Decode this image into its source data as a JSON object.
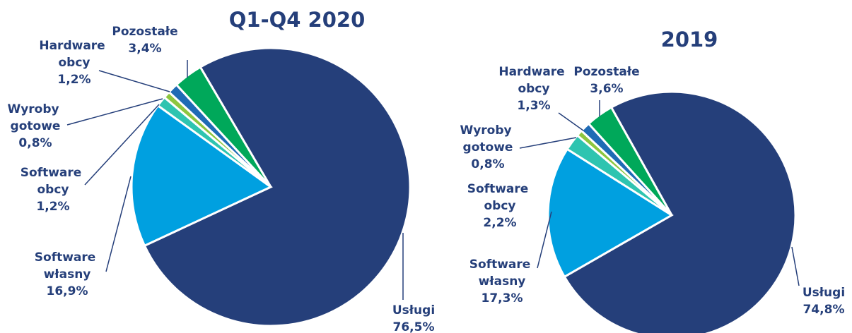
{
  "chart_data": [
    {
      "type": "pie",
      "title": "Q1-Q4 2020",
      "categories": [
        "Usługi",
        "Software własny",
        "Software obcy",
        "Wyroby gotowe",
        "Hardware obcy",
        "Pozostałe"
      ],
      "values": [
        76.5,
        16.9,
        1.2,
        0.8,
        1.2,
        3.4
      ],
      "value_labels": [
        "76,5%",
        "16,9%",
        "1,2%",
        "0,8%",
        "1,2%",
        "3,4%"
      ],
      "colors": [
        "#253f7a",
        "#00a0e0",
        "#2ec4b0",
        "#8dc63f",
        "#1f6bb5",
        "#00a85a"
      ]
    },
    {
      "type": "pie",
      "title": "2019",
      "categories": [
        "Usługi",
        "Software własny",
        "Software obcy",
        "Wyroby gotowe",
        "Hardware obcy",
        "Pozostałe"
      ],
      "values": [
        74.8,
        17.3,
        2.2,
        0.8,
        1.3,
        3.6
      ],
      "value_labels": [
        "74,8%",
        "17,3%",
        "2,2%",
        "0,8%",
        "1,3%",
        "3,6%"
      ],
      "colors": [
        "#253f7a",
        "#00a0e0",
        "#2ec4b0",
        "#8dc63f",
        "#1f6bb5",
        "#00a85a"
      ]
    }
  ]
}
